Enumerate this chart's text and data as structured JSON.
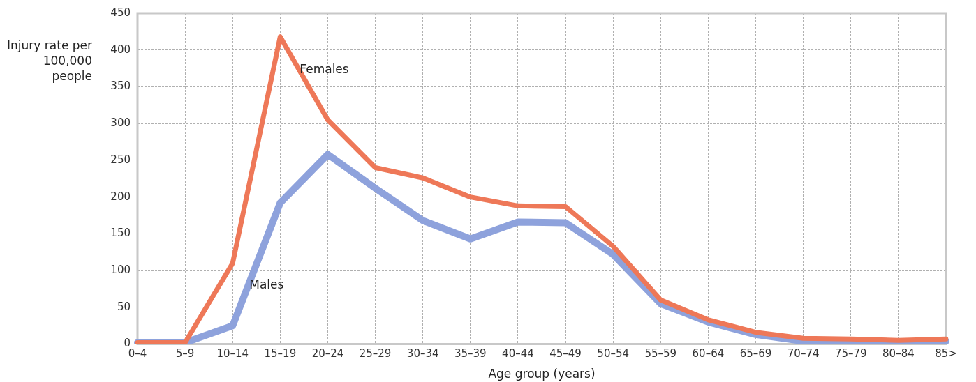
{
  "chart_data": {
    "type": "line",
    "xlabel": "Age group (years)",
    "ylabel": "Injury rate per 100,000 people",
    "categories": [
      "0–4",
      "5–9",
      "10–14",
      "15–19",
      "20–24",
      "25–29",
      "30–34",
      "35–39",
      "40–44",
      "45–49",
      "50–54",
      "55–59",
      "60–64",
      "65–69",
      "70–74",
      "75–79",
      "80–84",
      "85>"
    ],
    "series": [
      {
        "name": "Females",
        "color": "#ee7858",
        "values": [
          2,
          2,
          110,
          418,
          305,
          240,
          226,
          200,
          188,
          187,
          133,
          60,
          33,
          16,
          8,
          7,
          5,
          7
        ]
      },
      {
        "name": "Males",
        "color": "#8ea2dc",
        "values": [
          2,
          2,
          25,
          192,
          258,
          212,
          168,
          143,
          166,
          165,
          122,
          55,
          30,
          13,
          4,
          3,
          3,
          4
        ]
      }
    ],
    "ylim": [
      0,
      450
    ],
    "yticks": [
      0,
      50,
      100,
      150,
      200,
      250,
      300,
      350,
      400,
      450
    ],
    "grid": true,
    "legend": false,
    "marker": "none",
    "line_style": "solid"
  }
}
